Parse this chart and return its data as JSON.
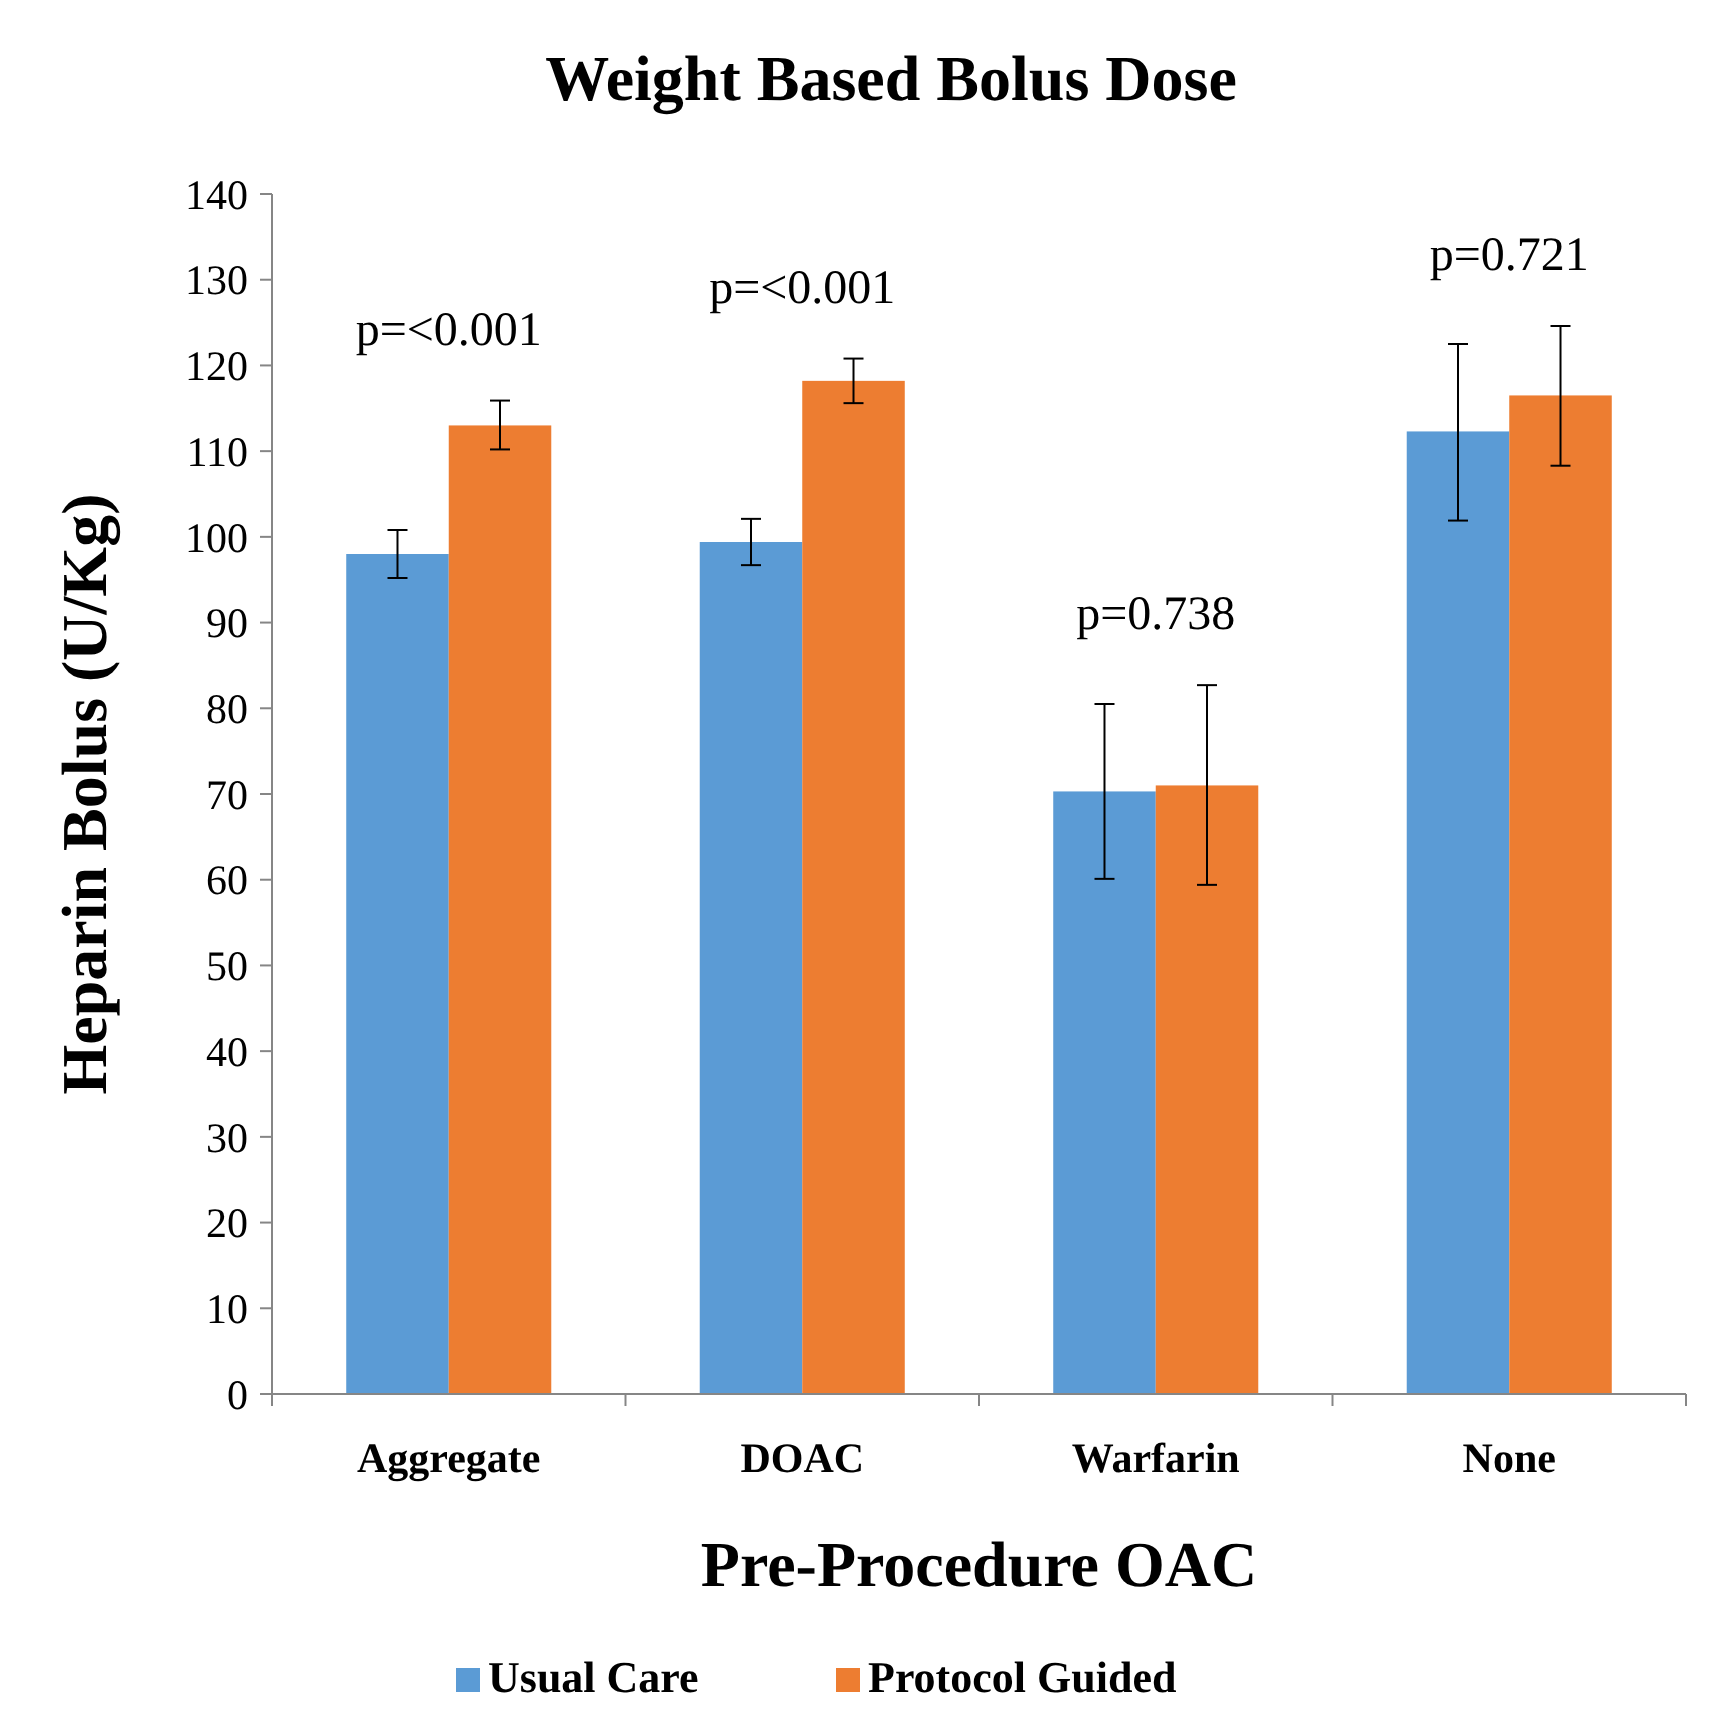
{
  "chart_data": {
    "type": "bar",
    "title": "Weight Based Bolus Dose",
    "xlabel": "Pre-Procedure OAC",
    "ylabel": "Heparin Bolus (U/Kg)",
    "categories": [
      "Aggregate",
      "DOAC",
      "Warfarin",
      "None"
    ],
    "series": [
      {
        "name": "Usual Care",
        "color": "#5b9bd5",
        "values": [
          98,
          99.4,
          70.3,
          112.3
        ],
        "errors": [
          [
            95.2,
            100.8
          ],
          [
            96.7,
            102.1
          ],
          [
            60.1,
            80.5
          ],
          [
            101.9,
            122.5
          ]
        ]
      },
      {
        "name": "Protocol Guided",
        "color": "#ed7d31",
        "values": [
          113,
          118.2,
          71,
          116.5
        ],
        "errors": [
          [
            110.2,
            115.9
          ],
          [
            115.6,
            120.8
          ],
          [
            59.4,
            82.7
          ],
          [
            108.3,
            124.6
          ]
        ]
      }
    ],
    "annotations": [
      "p=<0.001",
      "p=<0.001",
      "p=0.738",
      "p=0.721"
    ],
    "ylim": [
      0,
      140
    ],
    "yticks": [
      0,
      10,
      20,
      30,
      40,
      50,
      60,
      70,
      80,
      90,
      100,
      110,
      120,
      130,
      140
    ],
    "grid": false,
    "legend": "bottom"
  }
}
